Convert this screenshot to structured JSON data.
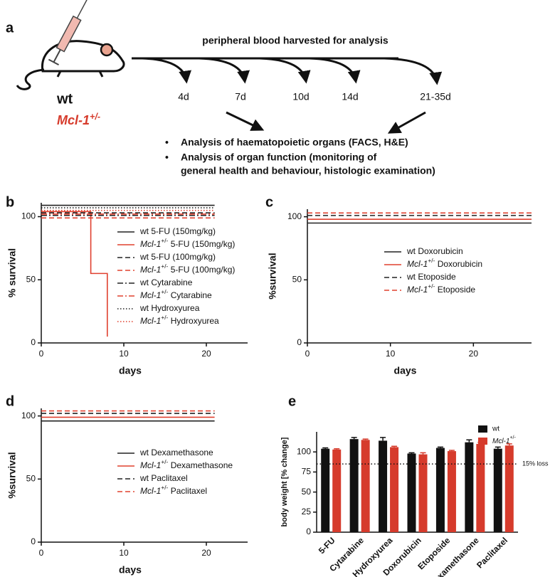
{
  "diagram": {
    "label": "a",
    "strains": [
      "wt",
      "Mcl-1+/-"
    ],
    "timeline_title": "peripheral blood harvested for analysis",
    "timepoints": [
      "4d",
      "7d",
      "10d",
      "14d",
      "21-35d"
    ],
    "bullets": [
      [
        "Analysis of haematopoietic organs (FACS, H&E)"
      ],
      [
        "Analysis of organ function (monitoring of",
        "general health and behaviour, histologic examination)"
      ]
    ]
  },
  "chart_data": [
    {
      "type": "line",
      "label": "b",
      "xlabel": "days",
      "ylabel": "% survival",
      "xlim": [
        0,
        25
      ],
      "ylim": [
        0,
        111
      ],
      "xticks": [
        0,
        10,
        20
      ],
      "yticks": [
        0,
        50,
        100
      ],
      "series": [
        {
          "name": "wt 5-FU (150mg/kg)",
          "color": "#222222",
          "dash": "solid",
          "x": [
            0,
            21
          ],
          "values": [
            109,
            109
          ]
        },
        {
          "name": "Mcl-1+/- 5-FU (150mg/kg)",
          "color": "#e0402f",
          "dash": "solid",
          "x": [
            0,
            6,
            6,
            8,
            8
          ],
          "values": [
            104,
            104,
            55,
            55,
            5
          ]
        },
        {
          "name": "wt 5-FU (100mg/kg)",
          "color": "#222222",
          "dash": "dashed",
          "x": [
            0,
            21
          ],
          "values": [
            103,
            103
          ]
        },
        {
          "name": "Mcl-1+/- 5-FU (100mg/kg)",
          "color": "#e0402f",
          "dash": "dashed",
          "x": [
            0,
            21
          ],
          "values": [
            99,
            99
          ]
        },
        {
          "name": "wt Cytarabine",
          "color": "#222222",
          "dash": "dashdot",
          "x": [
            0,
            21
          ],
          "values": [
            101,
            101
          ]
        },
        {
          "name": "Mcl-1+/- Cytarabine",
          "color": "#e0402f",
          "dash": "dashdot",
          "x": [
            0,
            21
          ],
          "values": [
            102,
            102
          ]
        },
        {
          "name": "wt Hydroxyurea",
          "color": "#222222",
          "dash": "dotted",
          "x": [
            0,
            21
          ],
          "values": [
            107,
            107
          ]
        },
        {
          "name": "Mcl-1+/- Hydroxyurea",
          "color": "#e0402f",
          "dash": "dotted",
          "x": [
            0,
            21
          ],
          "values": [
            105,
            105
          ]
        }
      ]
    },
    {
      "type": "line",
      "label": "c",
      "xlabel": "days",
      "ylabel": "%survival",
      "xlim": [
        0,
        27
      ],
      "ylim": [
        0,
        106
      ],
      "xticks": [
        0,
        10,
        20
      ],
      "yticks": [
        0,
        50,
        100
      ],
      "series": [
        {
          "name": "wt Doxorubicin",
          "color": "#222222",
          "dash": "solid",
          "x": [
            0,
            27
          ],
          "values": [
            95,
            95
          ]
        },
        {
          "name": "Mcl-1+/- Doxorubicin",
          "color": "#e0402f",
          "dash": "solid",
          "x": [
            0,
            27
          ],
          "values": [
            98,
            98
          ]
        },
        {
          "name": "wt Etoposide",
          "color": "#222222",
          "dash": "dashed",
          "x": [
            0,
            27
          ],
          "values": [
            101,
            101
          ]
        },
        {
          "name": "Mcl-1+/- Etoposide",
          "color": "#e0402f",
          "dash": "dashed",
          "x": [
            0,
            27
          ],
          "values": [
            103,
            103
          ]
        }
      ]
    },
    {
      "type": "line",
      "label": "d",
      "xlabel": "days",
      "ylabel": "%survival",
      "xlim": [
        0,
        25
      ],
      "ylim": [
        0,
        106
      ],
      "xticks": [
        0,
        10,
        20
      ],
      "yticks": [
        0,
        50,
        100
      ],
      "series": [
        {
          "name": "wt Dexamethasone",
          "color": "#222222",
          "dash": "solid",
          "x": [
            0,
            21
          ],
          "values": [
            96,
            96
          ]
        },
        {
          "name": "Mcl-1+/- Dexamethasone",
          "color": "#e0402f",
          "dash": "solid",
          "x": [
            0,
            21
          ],
          "values": [
            99,
            99
          ]
        },
        {
          "name": "wt Paclitaxel",
          "color": "#222222",
          "dash": "dashed",
          "x": [
            0,
            21
          ],
          "values": [
            102,
            102
          ]
        },
        {
          "name": "Mcl-1+/- Paclitaxel",
          "color": "#e0402f",
          "dash": "dashed",
          "x": [
            0,
            21
          ],
          "values": [
            104,
            104
          ]
        }
      ]
    },
    {
      "type": "bar",
      "label": "e",
      "ylabel": "body weight [% change]",
      "ylim": [
        0,
        125
      ],
      "yticks": [
        0,
        25,
        50,
        75,
        100
      ],
      "categories": [
        "5-FU",
        "Cytarabine",
        "Hydroxyurea",
        "Doxorubicin",
        "Etoposide",
        "Dexamethasone",
        "Paclitaxel"
      ],
      "series": [
        {
          "name": "wt",
          "color": "#111111",
          "values": [
            104,
            116,
            114,
            98,
            105,
            112,
            104
          ],
          "errors": [
            1,
            2,
            4,
            1,
            1,
            3,
            2
          ]
        },
        {
          "name": "Mcl-1+/-",
          "color": "#d63b2c",
          "values": [
            103,
            115,
            106,
            97,
            101,
            110,
            108
          ],
          "errors": [
            1,
            1,
            1,
            2,
            1,
            2,
            2
          ]
        }
      ],
      "reference_line": {
        "value": 85,
        "label": "15% loss"
      }
    }
  ]
}
